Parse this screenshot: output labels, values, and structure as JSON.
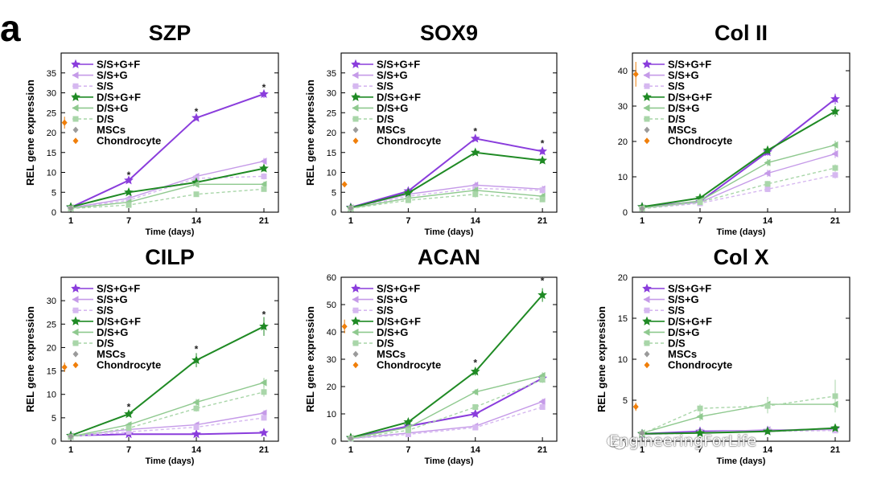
{
  "figure": {
    "panel_letter": "a",
    "watermark": "EngineeringForLife"
  },
  "colors": {
    "S/S+G+F": "#8a3ddc",
    "S/S+G": "#c59ae8",
    "S/S": "#d6b8f0",
    "D/S+G+F": "#1f8a24",
    "D/S+G": "#8fc98f",
    "D/S": "#a9d6a9",
    "MSCs": "#9a9a9a",
    "Chondrocyte": "#f07f0a"
  },
  "chart_data": [
    {
      "type": "line",
      "title": "SZP",
      "xlabel": "Time (days)",
      "ylabel": "REL gene expression",
      "x": [
        1,
        7,
        14,
        21
      ],
      "ylim": [
        0,
        40
      ],
      "yticks": [
        0,
        5,
        10,
        15,
        20,
        25,
        30,
        35
      ],
      "legend": "top-left",
      "significance": [
        {
          "x": 7,
          "y": 9.5,
          "label": "*"
        },
        {
          "x": 14,
          "y": 25.5,
          "label": "*"
        },
        {
          "x": 21,
          "y": 31.5,
          "label": "*"
        }
      ],
      "series": [
        {
          "name": "S/S+G+F",
          "values": [
            1.2,
            8,
            23.7,
            29.7
          ],
          "err": [
            0.3,
            0.5,
            0.6,
            1.0
          ]
        },
        {
          "name": "S/S+G",
          "values": [
            1.1,
            3.5,
            9,
            12.8
          ],
          "err": [
            0.3,
            0.5,
            0.6,
            0.8
          ]
        },
        {
          "name": "S/S",
          "values": [
            1.0,
            3.0,
            8.5,
            9
          ],
          "err": [
            0.3,
            0.5,
            0.6,
            0.8
          ]
        },
        {
          "name": "D/S+G+F",
          "values": [
            1.3,
            5,
            7.5,
            11
          ],
          "err": [
            0.3,
            0.5,
            0.6,
            0.8
          ]
        },
        {
          "name": "D/S+G",
          "values": [
            1.0,
            2.5,
            7,
            7
          ],
          "err": [
            0.3,
            0.5,
            0.6,
            0.7
          ]
        },
        {
          "name": "D/S",
          "values": [
            0.9,
            1.8,
            4.5,
            5.8
          ],
          "err": [
            0.3,
            0.5,
            0.5,
            0.6
          ]
        },
        {
          "name": "MSCs",
          "points": [
            [
              1,
              1
            ]
          ],
          "err": [
            0.3
          ]
        },
        {
          "name": "Chondrocyte",
          "points": [
            [
              0.35,
              22.5
            ]
          ],
          "err": [
            1.5
          ]
        }
      ]
    },
    {
      "type": "line",
      "title": "SOX9",
      "xlabel": "Time (days)",
      "ylabel": "REL gene expression",
      "x": [
        1,
        7,
        14,
        21
      ],
      "ylim": [
        0,
        40
      ],
      "yticks": [
        0,
        5,
        10,
        15,
        20,
        25,
        30,
        35
      ],
      "legend": "top-left",
      "significance": [
        {
          "x": 14,
          "y": 20.5,
          "label": "*"
        },
        {
          "x": 21,
          "y": 17.5,
          "label": "*"
        }
      ],
      "series": [
        {
          "name": "S/S+G+F",
          "values": [
            1.2,
            5.3,
            18.5,
            15.3
          ],
          "err": [
            0.3,
            0.5,
            0.6,
            0.8
          ]
        },
        {
          "name": "S/S+G",
          "values": [
            1.1,
            4.5,
            6.8,
            5.8
          ],
          "err": [
            0.3,
            0.5,
            0.8,
            0.8
          ]
        },
        {
          "name": "S/S",
          "values": [
            1.0,
            4.0,
            6.0,
            5.5
          ],
          "err": [
            0.3,
            0.5,
            0.8,
            0.8
          ]
        },
        {
          "name": "D/S+G+F",
          "values": [
            1.1,
            4.8,
            15,
            13
          ],
          "err": [
            0.3,
            0.5,
            0.6,
            0.7
          ]
        },
        {
          "name": "D/S+G",
          "values": [
            1.0,
            3.5,
            5.5,
            4
          ],
          "err": [
            0.3,
            0.5,
            0.8,
            0.7
          ]
        },
        {
          "name": "D/S",
          "values": [
            0.9,
            3.0,
            4.5,
            3.2
          ],
          "err": [
            0.3,
            0.5,
            0.8,
            0.6
          ]
        },
        {
          "name": "MSCs",
          "points": [
            [
              1,
              1
            ]
          ],
          "err": [
            0.3
          ]
        },
        {
          "name": "Chondrocyte",
          "points": [
            [
              0.35,
              7
            ]
          ],
          "err": [
            0.5
          ]
        }
      ]
    },
    {
      "type": "line",
      "title": "Col II",
      "xlabel": "Time (days)",
      "ylabel": "",
      "x": [
        1,
        7,
        14,
        21
      ],
      "ylim": [
        0,
        45
      ],
      "yticks": [
        0,
        10,
        20,
        30,
        40
      ],
      "legend": "top-left",
      "significance": [],
      "series": [
        {
          "name": "S/S+G+F",
          "values": [
            1.5,
            3.0,
            17,
            32
          ],
          "err": [
            0.4,
            0.5,
            1.0,
            1.5
          ]
        },
        {
          "name": "S/S+G",
          "values": [
            1.2,
            2.8,
            11,
            16.5
          ],
          "err": [
            0.4,
            0.5,
            1.0,
            1.2
          ]
        },
        {
          "name": "S/S",
          "values": [
            1.0,
            2.5,
            6.5,
            10.5
          ],
          "err": [
            0.3,
            0.5,
            0.8,
            1.0
          ]
        },
        {
          "name": "D/S+G+F",
          "values": [
            1.5,
            4.0,
            17.5,
            28.5
          ],
          "err": [
            0.4,
            0.5,
            1.0,
            1.5
          ]
        },
        {
          "name": "D/S+G",
          "values": [
            1.2,
            3.2,
            14,
            19
          ],
          "err": [
            0.4,
            0.5,
            1.0,
            1.2
          ]
        },
        {
          "name": "D/S",
          "values": [
            1.0,
            2.8,
            8,
            12.5
          ],
          "err": [
            0.3,
            0.5,
            0.8,
            1.0
          ]
        },
        {
          "name": "MSCs",
          "points": [
            [
              1,
              1
            ]
          ],
          "err": [
            0.3
          ]
        },
        {
          "name": "Chondrocyte",
          "points": [
            [
              0.35,
              39
            ]
          ],
          "err": [
            3.5
          ]
        }
      ]
    },
    {
      "type": "line",
      "title": "CILP",
      "xlabel": "Time (days)",
      "ylabel": "REL gene expression",
      "x": [
        1,
        7,
        14,
        21
      ],
      "ylim": [
        0,
        35
      ],
      "yticks": [
        0,
        5,
        10,
        15,
        20,
        25,
        30
      ],
      "legend": "top-left",
      "significance": [
        {
          "x": 7,
          "y": 7.5,
          "label": "*"
        },
        {
          "x": 14,
          "y": 19.8,
          "label": "*"
        },
        {
          "x": 21,
          "y": 27.2,
          "label": "*"
        }
      ],
      "series": [
        {
          "name": "S/S+G+F",
          "values": [
            1.2,
            1.5,
            1.5,
            1.8
          ],
          "err": [
            0.3,
            0.3,
            0.3,
            0.3
          ]
        },
        {
          "name": "S/S+G",
          "values": [
            1.1,
            2.5,
            3.5,
            6
          ],
          "err": [
            0.3,
            0.4,
            0.5,
            0.6
          ]
        },
        {
          "name": "S/S",
          "values": [
            1.0,
            2.0,
            3.0,
            5
          ],
          "err": [
            0.3,
            0.4,
            0.5,
            0.6
          ]
        },
        {
          "name": "D/S+G+F",
          "values": [
            1.2,
            5.8,
            17.3,
            24.5
          ],
          "err": [
            0.3,
            0.5,
            1.5,
            2.0
          ]
        },
        {
          "name": "D/S+G",
          "values": [
            1.0,
            3.5,
            8.3,
            12.5
          ],
          "err": [
            0.3,
            0.5,
            0.7,
            1.0
          ]
        },
        {
          "name": "D/S",
          "values": [
            0.9,
            2.8,
            7,
            10.5
          ],
          "err": [
            0.3,
            0.5,
            0.7,
            1.0
          ]
        },
        {
          "name": "MSCs",
          "points": [
            [
              1,
              1
            ]
          ],
          "err": [
            0.3
          ]
        },
        {
          "name": "Chondrocyte",
          "points": [
            [
              0.35,
              15.8
            ]
          ],
          "err": [
            1.0
          ]
        }
      ]
    },
    {
      "type": "line",
      "title": "ACAN",
      "xlabel": "Time (days)",
      "ylabel": "REL gene expression",
      "x": [
        1,
        7,
        14,
        21
      ],
      "ylim": [
        0,
        60
      ],
      "yticks": [
        0,
        10,
        20,
        30,
        40,
        50,
        60
      ],
      "legend": "top-left",
      "significance": [
        {
          "x": 14,
          "y": 29,
          "label": "*"
        },
        {
          "x": 21,
          "y": 59,
          "label": "*"
        }
      ],
      "series": [
        {
          "name": "S/S+G+F",
          "values": [
            1.2,
            5.5,
            10,
            23
          ],
          "err": [
            0.3,
            0.5,
            1.0,
            1.2
          ]
        },
        {
          "name": "S/S+G",
          "values": [
            1.0,
            3.0,
            5.5,
            14.5
          ],
          "err": [
            0.3,
            0.5,
            0.8,
            1.0
          ]
        },
        {
          "name": "S/S",
          "values": [
            0.9,
            2.5,
            5.0,
            12.5
          ],
          "err": [
            0.3,
            0.5,
            0.8,
            1.0
          ]
        },
        {
          "name": "D/S+G+F",
          "values": [
            1.3,
            7.0,
            25.5,
            53.5
          ],
          "err": [
            0.3,
            0.6,
            1.5,
            2.5
          ]
        },
        {
          "name": "D/S+G",
          "values": [
            1.1,
            5.0,
            18,
            24
          ],
          "err": [
            0.3,
            0.5,
            1.0,
            1.2
          ]
        },
        {
          "name": "D/S",
          "values": [
            1.0,
            4.0,
            12.5,
            22.5
          ],
          "err": [
            0.3,
            0.5,
            1.0,
            1.2
          ]
        },
        {
          "name": "MSCs",
          "points": [
            [
              1,
              1
            ]
          ],
          "err": [
            0.3
          ]
        },
        {
          "name": "Chondrocyte",
          "points": [
            [
              0.35,
              42
            ]
          ],
          "err": [
            2.5
          ]
        }
      ]
    },
    {
      "type": "line",
      "title": "Col X",
      "xlabel": "Time (days)",
      "ylabel": "REL gene expression",
      "x": [
        1,
        7,
        14,
        21
      ],
      "ylim": [
        0,
        20
      ],
      "yticks": [
        0,
        5,
        10,
        15,
        20
      ],
      "legend": "top-left",
      "significance": [],
      "series": [
        {
          "name": "S/S+G+F",
          "values": [
            0.9,
            1.2,
            1.3,
            1.5
          ],
          "err": [
            0.2,
            0.2,
            0.3,
            0.3
          ]
        },
        {
          "name": "S/S+G",
          "values": [
            0.8,
            1.1,
            1.4,
            1.4
          ],
          "err": [
            0.2,
            0.2,
            0.3,
            0.3
          ]
        },
        {
          "name": "S/S",
          "values": [
            0.8,
            1.0,
            1.2,
            1.3
          ],
          "err": [
            0.2,
            0.2,
            0.3,
            0.3
          ]
        },
        {
          "name": "D/S+G+F",
          "values": [
            0.9,
            1.0,
            1.2,
            1.6
          ],
          "err": [
            0.2,
            0.2,
            0.3,
            0.3
          ]
        },
        {
          "name": "D/S+G",
          "values": [
            1.0,
            3.0,
            4.5,
            4.5
          ],
          "err": [
            0.3,
            0.5,
            0.9,
            0.9
          ]
        },
        {
          "name": "D/S",
          "values": [
            0.9,
            4.0,
            4.3,
            5.5
          ],
          "err": [
            0.3,
            0.5,
            0.9,
            2.0
          ]
        },
        {
          "name": "MSCs",
          "points": [
            [
              1,
              1
            ]
          ],
          "err": [
            0.2
          ]
        },
        {
          "name": "Chondrocyte",
          "points": [
            [
              0.35,
              4.2
            ]
          ],
          "err": [
            0.5
          ]
        }
      ]
    }
  ]
}
